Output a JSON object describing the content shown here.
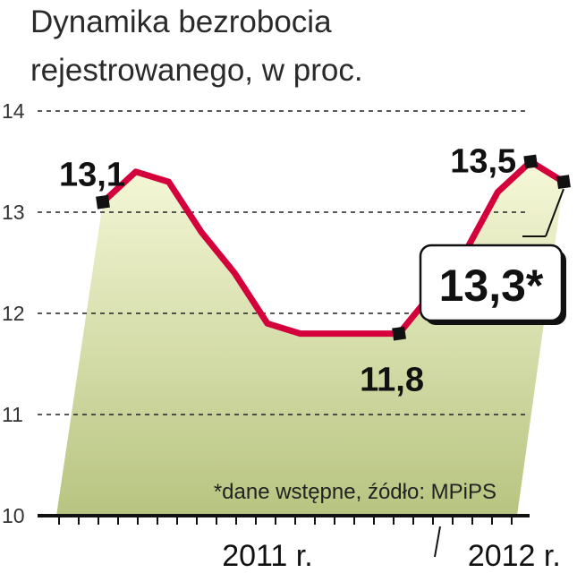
{
  "title_line1": "Dynamika bezrobocia",
  "title_line2": "rejestrowanego, w proc.",
  "note": "*dane wstępne, źódło: MPiPS",
  "colors": {
    "line": "#d4003c",
    "fill_top": "#f6f8d8",
    "fill_bottom": "#b7c480",
    "marker": "#111111",
    "grid": "#222222"
  },
  "chart_data": {
    "type": "area",
    "ylim": [
      10,
      14
    ],
    "yticks": [
      {
        "value": 10,
        "label": "10"
      },
      {
        "value": 11,
        "label": "11"
      },
      {
        "value": 12,
        "label": "12"
      },
      {
        "value": 13,
        "label": "13"
      },
      {
        "value": 14,
        "label": "14"
      }
    ],
    "xticks": [
      {
        "x": 5,
        "label": "2011 r."
      },
      {
        "x": 12.5,
        "label": "2012 r."
      }
    ],
    "grid": true,
    "series": [
      {
        "x": [
          0,
          1,
          2,
          3,
          4,
          5,
          6,
          7,
          8,
          9,
          10,
          11,
          12,
          13,
          14
        ],
        "values": [
          13.1,
          13.4,
          13.3,
          12.8,
          12.4,
          11.9,
          11.8,
          11.8,
          11.8,
          11.8,
          12.2,
          12.6,
          13.2,
          13.5,
          13.3
        ]
      }
    ],
    "annotations": [
      {
        "x": 0,
        "value": 13.1,
        "label": "13,1",
        "style": "plain"
      },
      {
        "x": 9,
        "value": 11.8,
        "label": "11,8",
        "style": "plain"
      },
      {
        "x": 13,
        "value": 13.5,
        "label": "13,5",
        "style": "plain"
      },
      {
        "x": 14,
        "value": 13.3,
        "label": "13,3*",
        "style": "callout"
      }
    ]
  }
}
